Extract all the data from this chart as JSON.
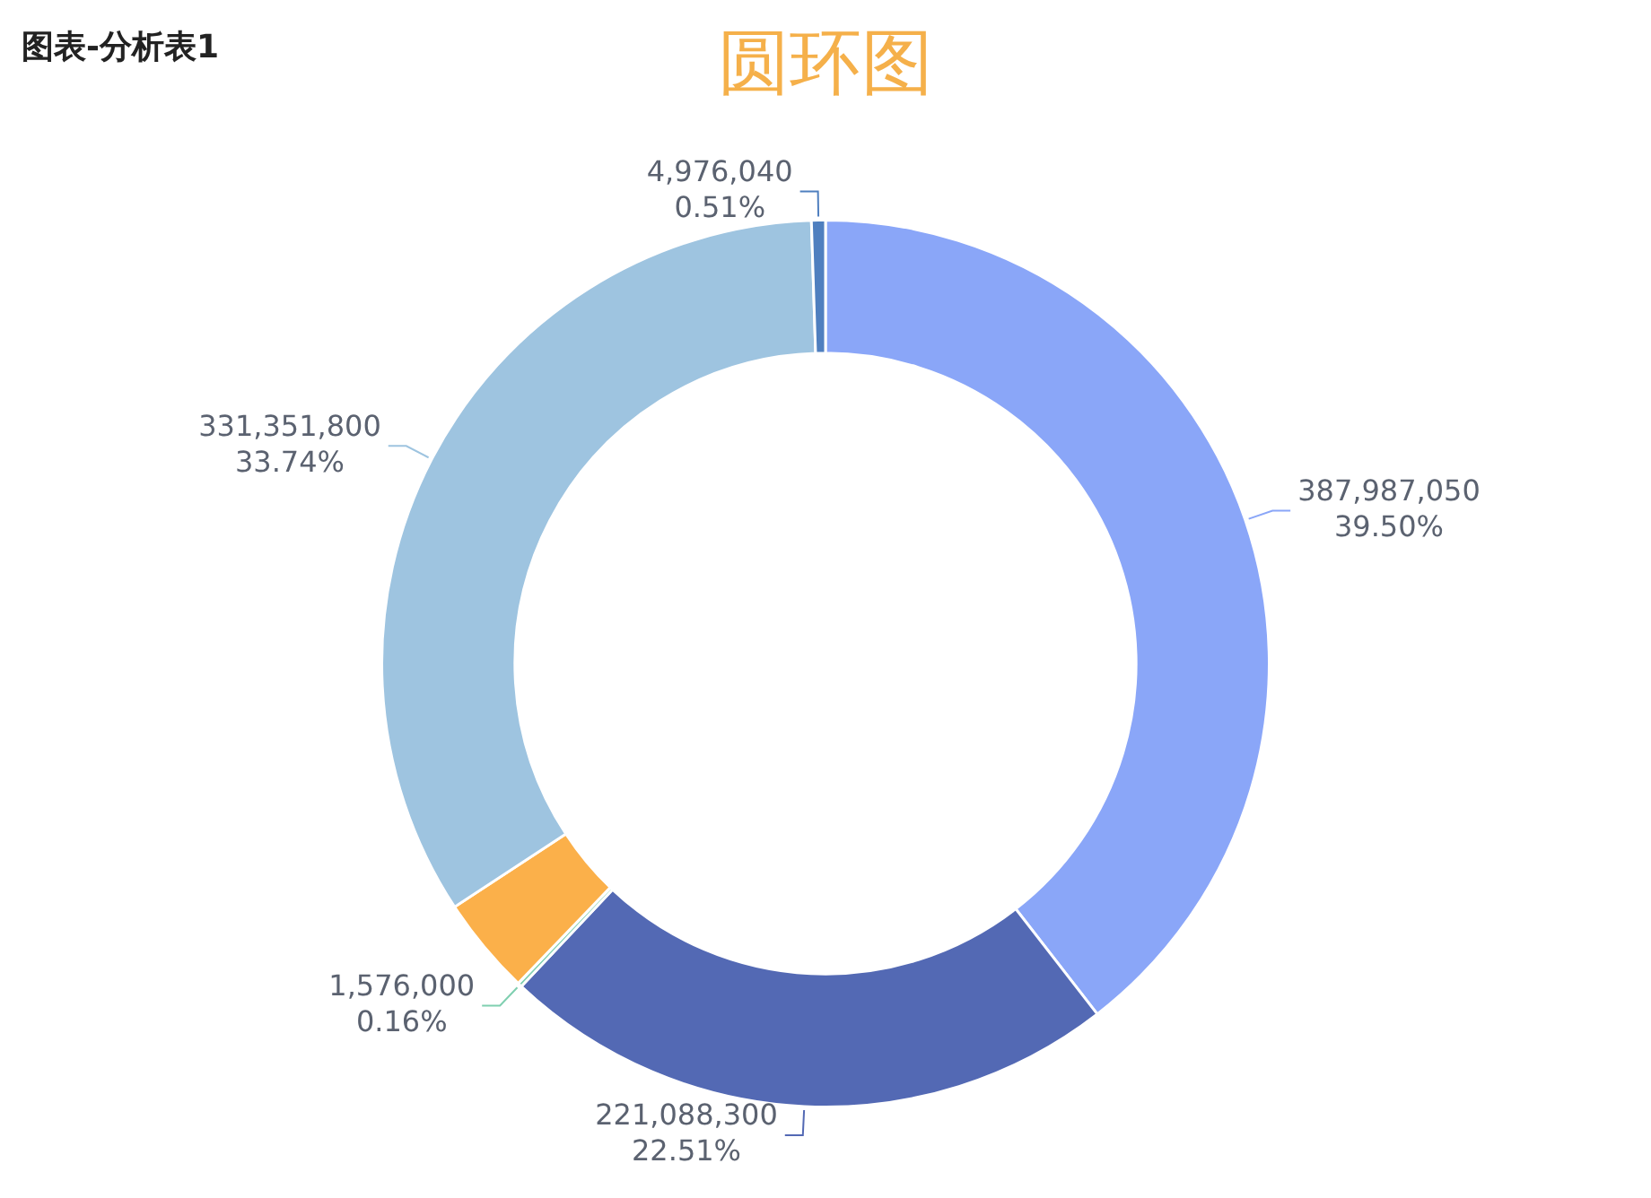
{
  "chart_data": {
    "type": "donut",
    "title": "圆环图",
    "annotations": [
      "图表-分析表1"
    ],
    "categories": [
      null,
      null,
      null,
      null,
      null,
      null
    ],
    "values": [
      387987050,
      221088300,
      1576000,
      35100000,
      331351800,
      4976040
    ],
    "colors": [
      "#8aa6f8",
      "#5369b4",
      "#7fcfb0",
      "#fbb04a",
      "#9ec4e0",
      "#4f7fbf"
    ],
    "value_labels": [
      "387,987,050\n39.50%",
      "221,088,300\n22.51%",
      "1,576,000\n0.16%",
      null,
      "331,351,800\n33.74%",
      "4,976,040\n0.51%"
    ],
    "legend": false
  }
}
